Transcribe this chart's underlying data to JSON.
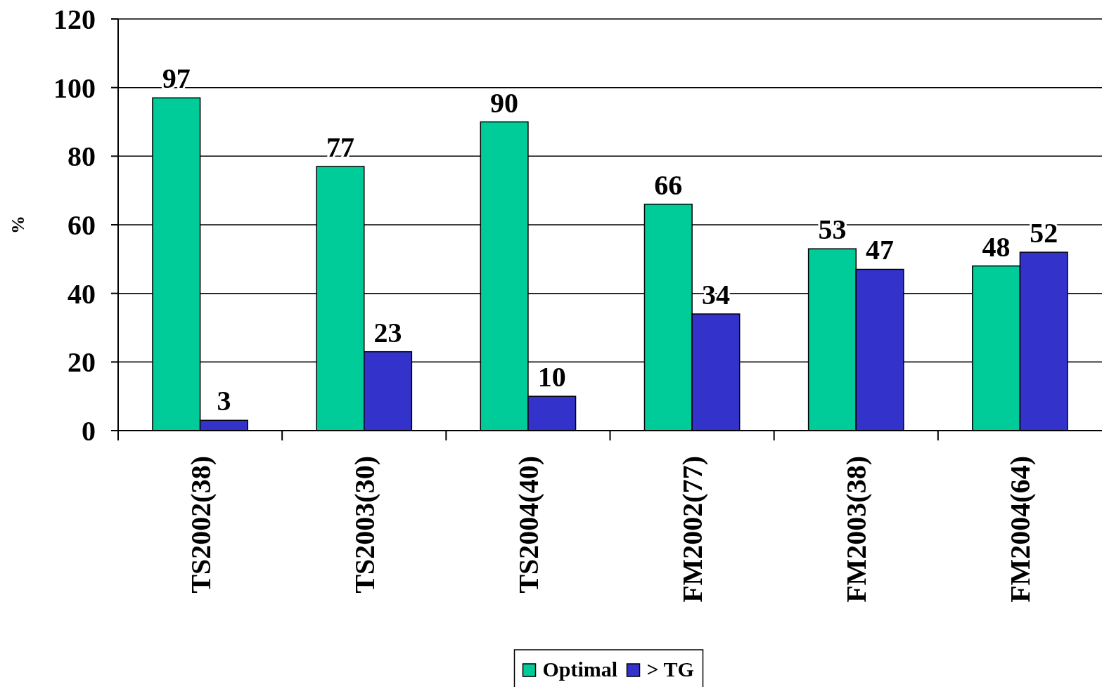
{
  "chart_data": {
    "type": "bar",
    "categories": [
      "TS2002(38)",
      "TS2003(30)",
      "TS2004(40)",
      "FM2002(77)",
      "FM2003(38)",
      "FM2004(64)"
    ],
    "series": [
      {
        "name": "Optimal",
        "color": "#00cc99",
        "values": [
          97,
          77,
          90,
          66,
          53,
          48
        ]
      },
      {
        "name": "> TG",
        "color": "#3333cc",
        "values": [
          3,
          23,
          10,
          34,
          47,
          52
        ]
      }
    ],
    "ylabel": "%",
    "ylim": [
      0,
      120
    ],
    "yticks": [
      0,
      20,
      40,
      60,
      80,
      100,
      120
    ],
    "grid": "y",
    "data_labels": true,
    "legend": "bottom"
  }
}
